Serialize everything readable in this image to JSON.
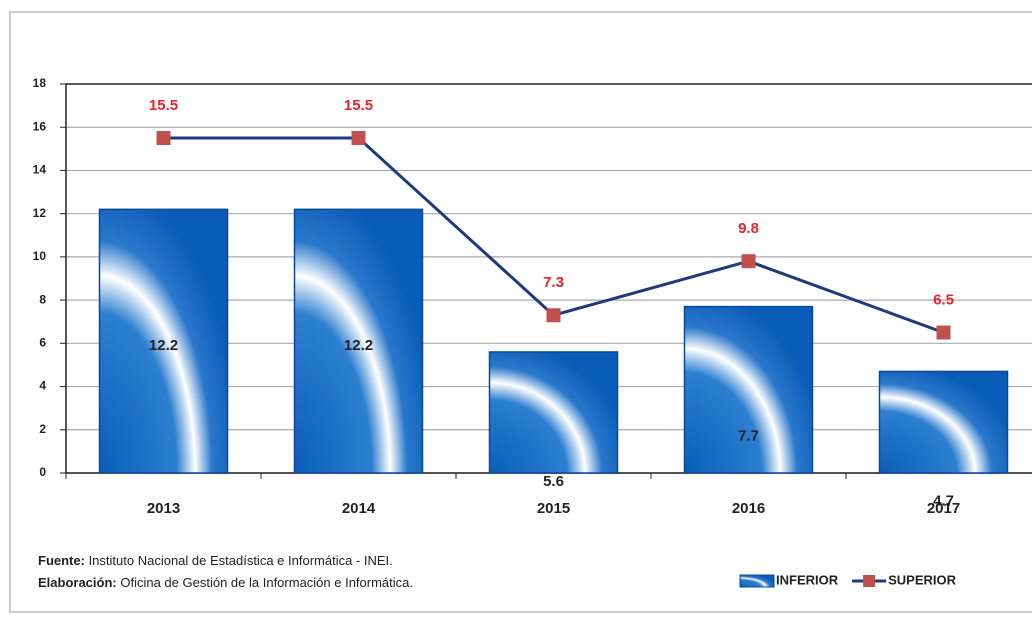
{
  "chart_data": {
    "type": "bar",
    "categories": [
      "2013",
      "2014",
      "2015",
      "2016",
      "2017"
    ],
    "series": [
      {
        "name": "INFERIOR",
        "type": "bar",
        "color": "#0b5cb8",
        "values": [
          12.2,
          12.2,
          5.6,
          7.7,
          4.7
        ]
      },
      {
        "name": "SUPERIOR",
        "type": "line",
        "color": "#1f3a7a",
        "marker_color": "#c0504d",
        "values": [
          15.5,
          15.5,
          7.3,
          9.8,
          6.5
        ]
      }
    ],
    "ylim": [
      0,
      18
    ],
    "yticks": [
      0,
      2,
      4,
      6,
      8,
      10,
      12,
      14,
      16,
      18
    ],
    "grid": true,
    "legend": "bottom-right",
    "footnotes": [
      {
        "label": "Fuente:",
        "text": " Instituto Nacional de Estadística e Informática - INEI."
      },
      {
        "label": "Elaboración:",
        "text": " Oficina de Gestión de la Información e Informática."
      }
    ]
  }
}
